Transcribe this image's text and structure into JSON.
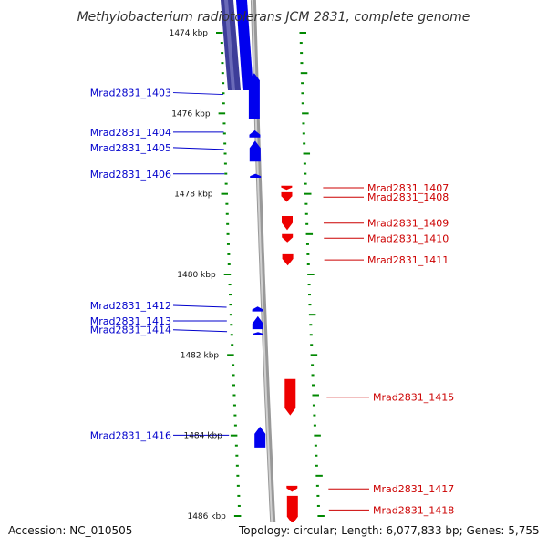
{
  "header": {
    "title": "Methylobacterium radiotolerans JCM 2831, complete genome"
  },
  "footer": {
    "accession": "Accession: NC_010505",
    "topology": "Topology: circular; Length: 6,077,833 bp; Genes: 5,755"
  },
  "colors": {
    "forward": "#0000ee",
    "reverse": "#ee0000",
    "forward_label": "#0000cc",
    "reverse_label": "#cc0000",
    "backbone": "#999999",
    "tick": "#008800",
    "top_band": "#3d3d99"
  },
  "kbp_ticks": [
    {
      "label": "1474 kbp",
      "kbp": 1474
    },
    {
      "label": "1476 kbp",
      "kbp": 1476
    },
    {
      "label": "1478 kbp",
      "kbp": 1478
    },
    {
      "label": "1480 kbp",
      "kbp": 1480
    },
    {
      "label": "1482 kbp",
      "kbp": 1482
    },
    {
      "label": "1484 kbp",
      "kbp": 1484
    },
    {
      "label": "1486 kbp",
      "kbp": 1486
    }
  ],
  "forward_genes": [
    {
      "name": "Mrad2831_1403",
      "start_kbp": 1475.0,
      "end_kbp": 1476.15
    },
    {
      "name": "Mrad2831_1404",
      "start_kbp": 1476.42,
      "end_kbp": 1476.6
    },
    {
      "name": "Mrad2831_1405",
      "start_kbp": 1476.68,
      "end_kbp": 1477.2
    },
    {
      "name": "Mrad2831_1406",
      "start_kbp": 1477.5,
      "end_kbp": 1477.6
    },
    {
      "name": "Mrad2831_1412",
      "start_kbp": 1480.8,
      "end_kbp": 1480.92
    },
    {
      "name": "Mrad2831_1413",
      "start_kbp": 1481.04,
      "end_kbp": 1481.36
    },
    {
      "name": "Mrad2831_1414",
      "start_kbp": 1481.43,
      "end_kbp": 1481.5
    },
    {
      "name": "Mrad2831_1416",
      "start_kbp": 1483.78,
      "end_kbp": 1484.3
    }
  ],
  "reverse_genes": [
    {
      "name": "Mrad2831_1407",
      "start_kbp": 1477.8,
      "end_kbp": 1477.9
    },
    {
      "name": "Mrad2831_1408",
      "start_kbp": 1477.96,
      "end_kbp": 1478.2
    },
    {
      "name": "Mrad2831_1409",
      "start_kbp": 1478.55,
      "end_kbp": 1478.9
    },
    {
      "name": "Mrad2831_1410",
      "start_kbp": 1479.0,
      "end_kbp": 1479.2
    },
    {
      "name": "Mrad2831_1411",
      "start_kbp": 1479.5,
      "end_kbp": 1479.78
    },
    {
      "name": "Mrad2831_1415",
      "start_kbp": 1482.6,
      "end_kbp": 1483.5
    },
    {
      "name": "Mrad2831_1417",
      "start_kbp": 1485.25,
      "end_kbp": 1485.4
    },
    {
      "name": "Mrad2831_1418",
      "start_kbp": 1485.5,
      "end_kbp": 1486.2
    }
  ]
}
